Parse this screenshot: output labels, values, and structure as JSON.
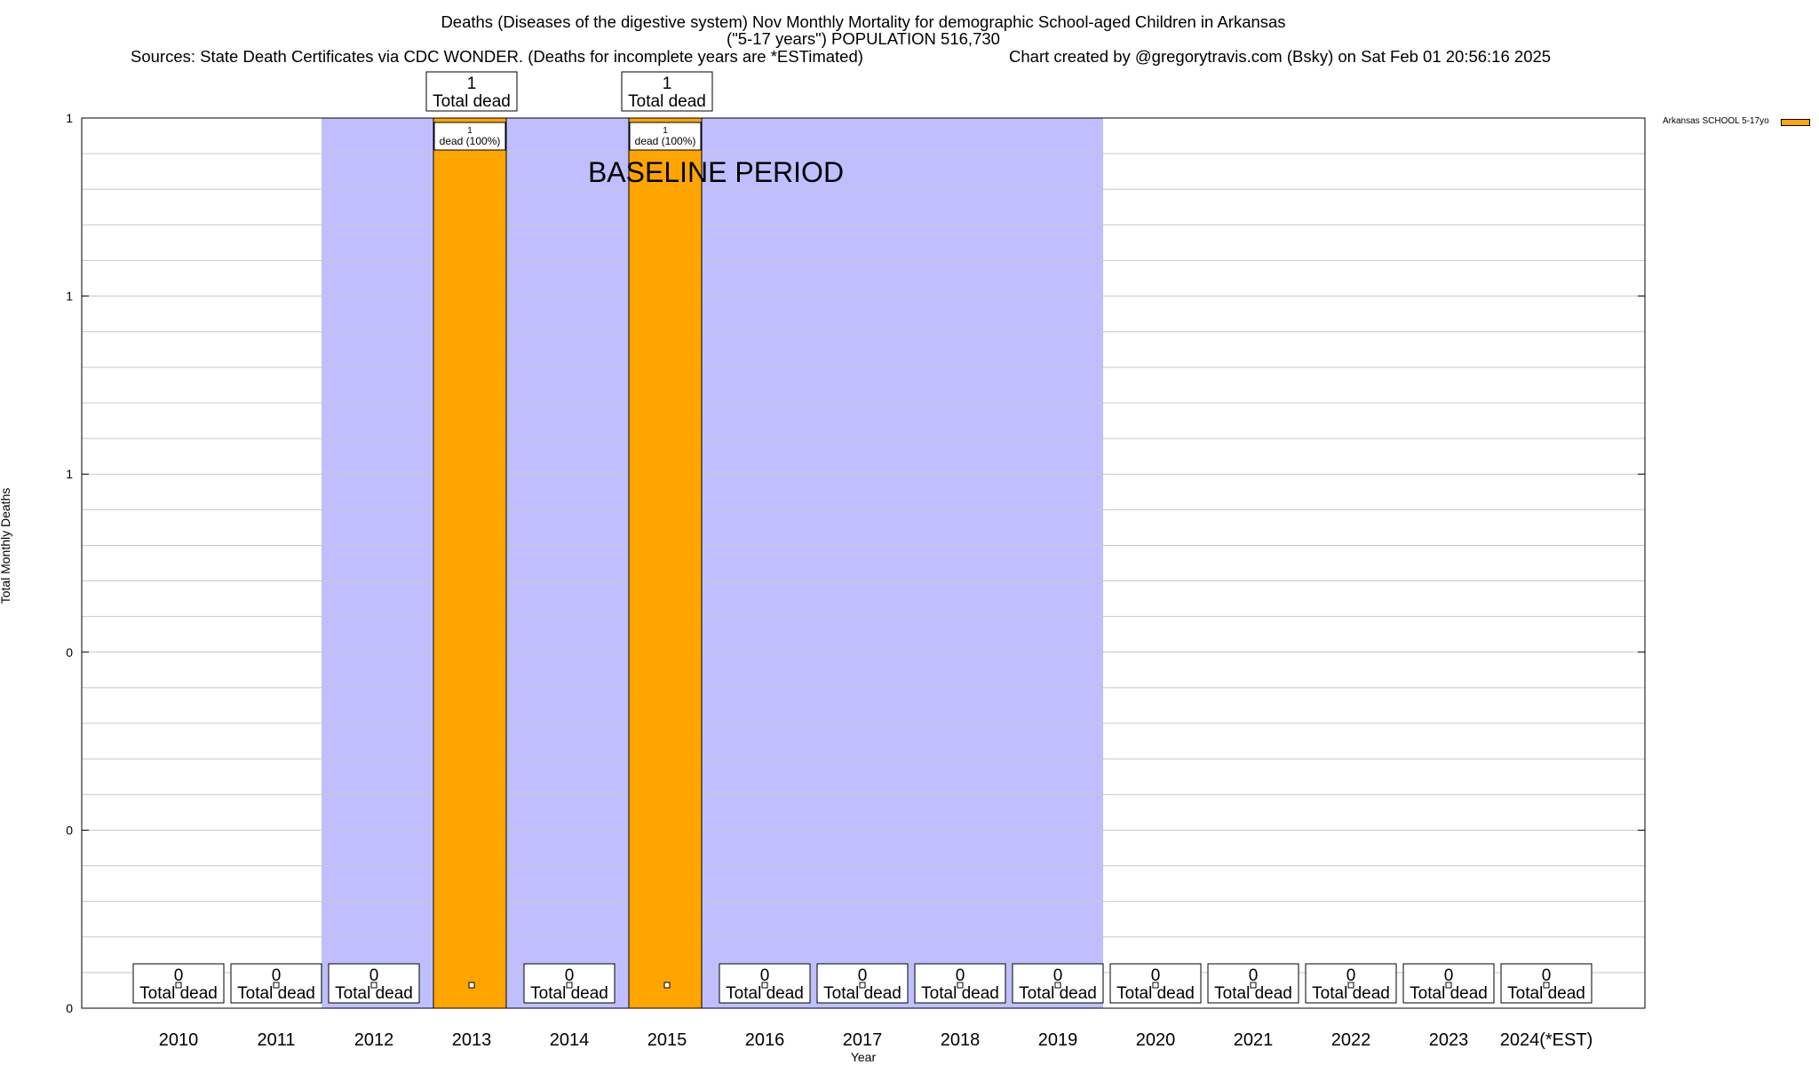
{
  "header": {
    "title_line1": "Deaths (Diseases of the digestive system) Nov Monthly Mortality for demographic School-aged Children in Arkansas",
    "title_line2": "(\"5-17 years\") POPULATION 516,730",
    "sources": "Sources: State Death Certificates via CDC WONDER. (Deaths for incomplete years are *ESTimated)",
    "credit": "Chart created by @gregorytravis.com (Bsky) on Sat Feb 01 20:56:16 2025"
  },
  "chart_data": {
    "type": "bar",
    "xlabel": "Year",
    "ylabel": "Total Monthly Deaths",
    "categories": [
      "2010",
      "2011",
      "2012",
      "2013",
      "2014",
      "2015",
      "2016",
      "2017",
      "2018",
      "2019",
      "2020",
      "2021",
      "2022",
      "2023",
      "2024(*EST)"
    ],
    "series": [
      {
        "name": "Arkansas SCHOOL 5-17yo",
        "color": "#ffa500",
        "values": [
          0,
          0,
          0,
          1,
          0,
          1,
          0,
          0,
          0,
          0,
          0,
          0,
          0,
          0,
          0
        ]
      }
    ],
    "ylim": [
      0,
      1
    ],
    "y_tick_labels": [
      "0",
      "0",
      "0",
      "1",
      "1",
      "1"
    ],
    "baseline_period": {
      "start": "2012",
      "end": "2019",
      "label": "BASELINE PERIOD",
      "color": "#bfbfff"
    },
    "total_label_text": "Total dead",
    "segment_label_text": "dead (100%)",
    "legend_position": "top-right",
    "grid": true
  }
}
